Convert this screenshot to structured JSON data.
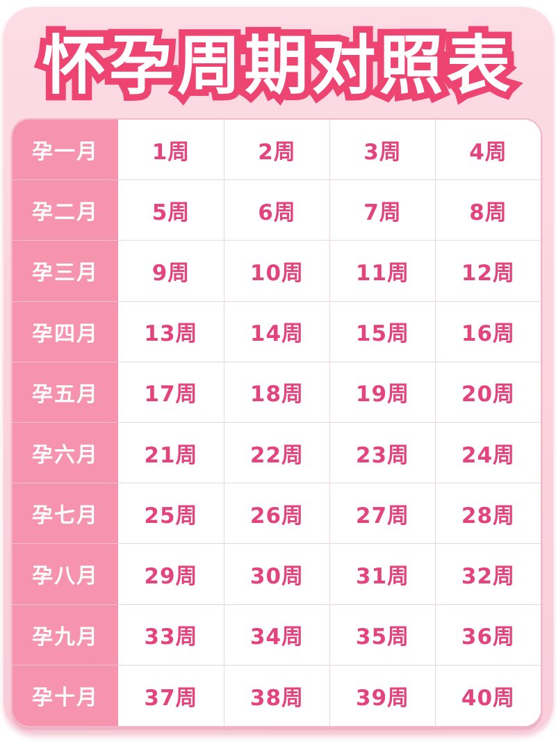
{
  "title": "怀孕周期对照表",
  "colors": {
    "page_background": "#FFFFFF",
    "card_background": "#FBD5E0",
    "title_fill": "#FFFFFF",
    "title_outline": "#EE4472",
    "month_column_background": "#F693AE",
    "month_label_text": "#FFFFFF",
    "week_text": "#E2447B",
    "cell_divider": "#EDD5DC",
    "table_border": "#F1B7C9"
  },
  "chart_data": {
    "type": "table",
    "title": "怀孕周期对照表",
    "row_header_unit": "月",
    "cell_unit": "周",
    "rows": [
      {
        "label": "孕一月",
        "cells": [
          "1周",
          "2周",
          "3周",
          "4周"
        ]
      },
      {
        "label": "孕二月",
        "cells": [
          "5周",
          "6周",
          "7周",
          "8周"
        ]
      },
      {
        "label": "孕三月",
        "cells": [
          "9周",
          "10周",
          "11周",
          "12周"
        ]
      },
      {
        "label": "孕四月",
        "cells": [
          "13周",
          "14周",
          "15周",
          "16周"
        ]
      },
      {
        "label": "孕五月",
        "cells": [
          "17周",
          "18周",
          "19周",
          "20周"
        ]
      },
      {
        "label": "孕六月",
        "cells": [
          "21周",
          "22周",
          "23周",
          "24周"
        ]
      },
      {
        "label": "孕七月",
        "cells": [
          "25周",
          "26周",
          "27周",
          "28周"
        ]
      },
      {
        "label": "孕八月",
        "cells": [
          "29周",
          "30周",
          "31周",
          "32周"
        ]
      },
      {
        "label": "孕九月",
        "cells": [
          "33周",
          "34周",
          "35周",
          "36周"
        ]
      },
      {
        "label": "孕十月",
        "cells": [
          "37周",
          "38周",
          "39周",
          "40周"
        ]
      }
    ]
  }
}
